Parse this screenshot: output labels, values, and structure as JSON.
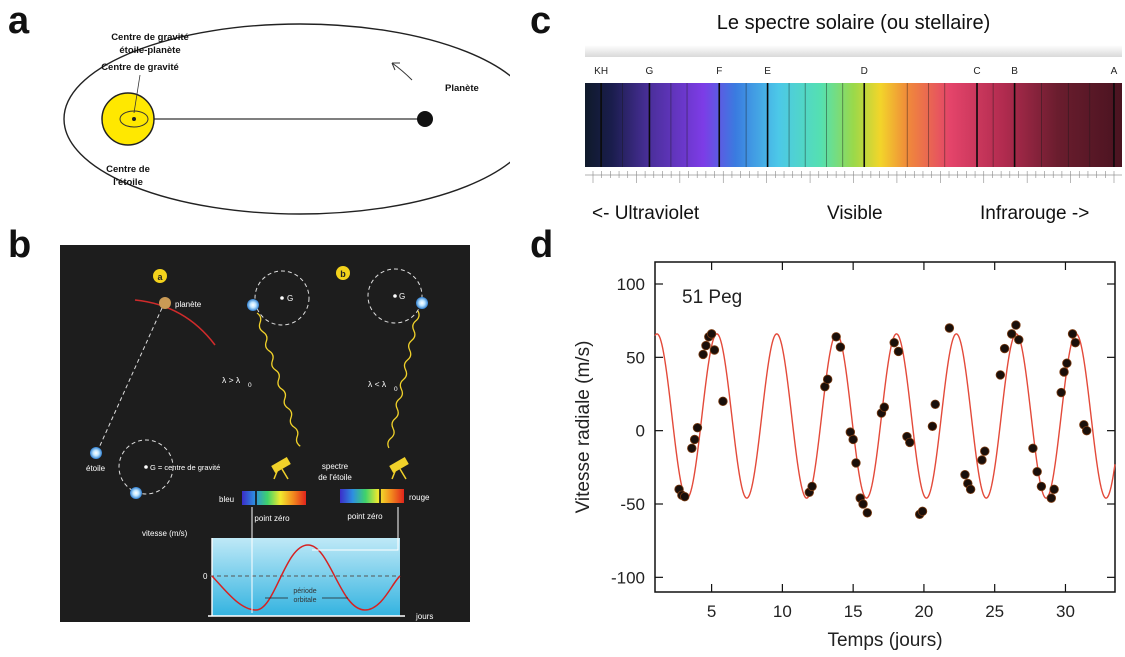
{
  "panels": {
    "a": {
      "letter": "a",
      "barycenter_label": [
        "Centre de gravité",
        "étoile-planète"
      ],
      "planet_label": "Planète",
      "star_center_label": [
        "Centre de",
        "l'étoile"
      ]
    },
    "b": {
      "letter": "b",
      "marker_a": "a",
      "marker_b": "b",
      "planete": "planète",
      "etoile": "étoile",
      "g_center": "G = centre de gravité",
      "g1": "G",
      "g2": "G",
      "lambda_gt": "λ > λ",
      "lambda_lt": "λ < λ",
      "lambda_sub": "0",
      "spectre": [
        "spectre",
        "de l'étoile"
      ],
      "bleu": "bleu",
      "rouge": "rouge",
      "point_zero_1": "point zéro",
      "point_zero_2": "point zéro",
      "vitesse": "vitesse (m/s)",
      "zero": "0",
      "periode": [
        "période",
        "orbitale"
      ],
      "jours": "jours"
    },
    "c": {
      "letter": "c",
      "title": "Le spectre solaire (ou stellaire)",
      "lines": [
        {
          "label": "KH",
          "pos": 0.03
        },
        {
          "label": "G",
          "pos": 0.12
        },
        {
          "label": "F",
          "pos": 0.25
        },
        {
          "label": "E",
          "pos": 0.34
        },
        {
          "label": "D",
          "pos": 0.52
        },
        {
          "label": "C",
          "pos": 0.73
        },
        {
          "label": "B",
          "pos": 0.8
        },
        {
          "label": "A",
          "pos": 0.985
        }
      ],
      "uv_label": "<- Ultraviolet",
      "visible_label": "Visible",
      "ir_label": "Infrarouge ->"
    }
  },
  "chart_data": {
    "letter": "d",
    "type": "scatter",
    "annotation": "51 Peg",
    "xlabel": "Temps (jours)",
    "ylabel": "Vitesse radiale (m/s)",
    "xlim": [
      1,
      33.5
    ],
    "ylim": [
      -110,
      115
    ],
    "xticks": [
      5,
      10,
      15,
      20,
      25,
      30
    ],
    "yticks": [
      -100,
      -50,
      0,
      50,
      100
    ],
    "fit": {
      "amplitude": 56,
      "offset": 10,
      "period": 4.23,
      "peak_day": 9.6,
      "color": "#e34a3a"
    },
    "points": [
      [
        2.7,
        -40
      ],
      [
        2.9,
        -44
      ],
      [
        3.1,
        -45
      ],
      [
        3.6,
        -12
      ],
      [
        3.8,
        -6
      ],
      [
        4.0,
        2
      ],
      [
        4.4,
        52
      ],
      [
        4.6,
        58
      ],
      [
        4.8,
        64
      ],
      [
        5.0,
        66
      ],
      [
        5.2,
        55
      ],
      [
        5.8,
        20
      ],
      [
        11.9,
        -42
      ],
      [
        12.1,
        -38
      ],
      [
        13.0,
        30
      ],
      [
        13.2,
        35
      ],
      [
        13.8,
        64
      ],
      [
        14.1,
        57
      ],
      [
        14.8,
        -1
      ],
      [
        15.0,
        -6
      ],
      [
        15.2,
        -22
      ],
      [
        15.5,
        -46
      ],
      [
        15.7,
        -50
      ],
      [
        16.0,
        -56
      ],
      [
        17.0,
        12
      ],
      [
        17.2,
        16
      ],
      [
        17.9,
        60
      ],
      [
        18.2,
        54
      ],
      [
        18.8,
        -4
      ],
      [
        19.0,
        -8
      ],
      [
        19.7,
        -57
      ],
      [
        19.9,
        -55
      ],
      [
        20.6,
        3
      ],
      [
        20.8,
        18
      ],
      [
        21.8,
        70
      ],
      [
        22.9,
        -30
      ],
      [
        23.1,
        -36
      ],
      [
        23.3,
        -40
      ],
      [
        24.1,
        -20
      ],
      [
        24.3,
        -14
      ],
      [
        25.4,
        38
      ],
      [
        25.7,
        56
      ],
      [
        26.2,
        66
      ],
      [
        26.5,
        72
      ],
      [
        26.7,
        62
      ],
      [
        27.7,
        -12
      ],
      [
        28.0,
        -28
      ],
      [
        28.3,
        -38
      ],
      [
        29.0,
        -46
      ],
      [
        29.2,
        -40
      ],
      [
        29.7,
        26
      ],
      [
        29.9,
        40
      ],
      [
        30.1,
        46
      ],
      [
        30.5,
        66
      ],
      [
        30.7,
        60
      ],
      [
        31.3,
        4
      ],
      [
        31.5,
        0
      ]
    ],
    "point_color": "#1a0f0a"
  }
}
